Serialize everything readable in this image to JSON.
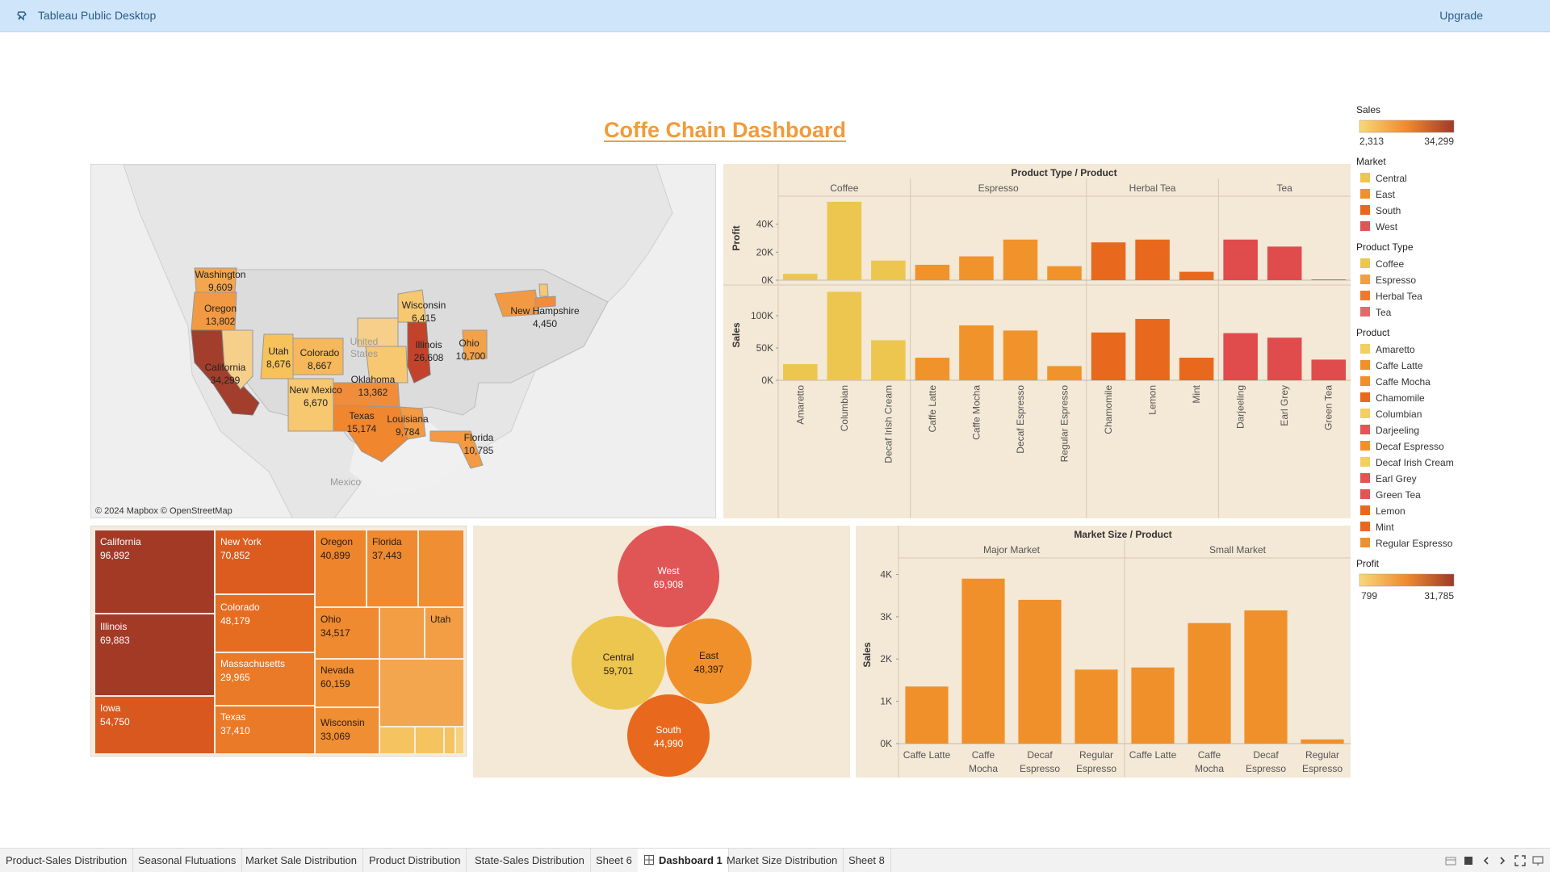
{
  "app": {
    "title": "Tableau Public Desktop",
    "upgrade_label": "Upgrade"
  },
  "dashboard": {
    "title": "Coffe Chain Dashboard"
  },
  "map": {
    "attribution": "© 2024 Mapbox © OpenStreetMap",
    "country_label_1": "United",
    "country_label_2": "States",
    "mexico_label": "Mexico",
    "states": [
      {
        "name": "Washington",
        "value": "9,609"
      },
      {
        "name": "Oregon",
        "value": "13,802"
      },
      {
        "name": "California",
        "value": "34,299"
      },
      {
        "name": "Utah",
        "value": "8,676"
      },
      {
        "name": "Colorado",
        "value": "8,667"
      },
      {
        "name": "New Mexico",
        "value": "6,670"
      },
      {
        "name": "Oklahoma",
        "value": "13,362"
      },
      {
        "name": "Texas",
        "value": "15,174"
      },
      {
        "name": "Louisiana",
        "value": "9,784"
      },
      {
        "name": "Florida",
        "value": "10,785"
      },
      {
        "name": "Wisconsin",
        "value": "6,415"
      },
      {
        "name": "Illinois",
        "value": "26,608"
      },
      {
        "name": "Ohio",
        "value": "10,700"
      },
      {
        "name": "New Hampshire",
        "value": "4,450"
      }
    ]
  },
  "product_chart": {
    "chart_data": {
      "type": "bar",
      "title": "Product Type / Product",
      "groups": [
        "Coffee",
        "Espresso",
        "Herbal Tea",
        "Tea"
      ],
      "categories": [
        "Amaretto",
        "Columbian",
        "Decaf Irish Cream",
        "Caffe Latte",
        "Caffe Mocha",
        "Decaf Espresso",
        "Regular Espresso",
        "Chamomile",
        "Lemon",
        "Mint",
        "Darjeeling",
        "Earl Grey",
        "Green Tea"
      ],
      "category_group": [
        0,
        0,
        0,
        1,
        1,
        1,
        1,
        2,
        2,
        2,
        3,
        3,
        3
      ],
      "series": [
        {
          "name": "Profit",
          "values": [
            4500,
            56000,
            14000,
            11000,
            17000,
            29000,
            10000,
            27000,
            29000,
            6000,
            29000,
            24000,
            500
          ],
          "ylim": [
            0,
            60000
          ],
          "ticks": [
            "0K",
            "20K",
            "40K"
          ],
          "tick_values": [
            0,
            20000,
            40000
          ]
        },
        {
          "name": "Sales",
          "values": [
            25000,
            137000,
            62000,
            35000,
            85000,
            77000,
            22000,
            74000,
            95000,
            35000,
            73000,
            66000,
            32000
          ],
          "ylim": [
            0,
            140000
          ],
          "ticks": [
            "0K",
            "50K",
            "100K"
          ],
          "tick_values": [
            0,
            50000,
            100000
          ]
        }
      ],
      "colors": [
        "#ecc64f",
        "#ecc64f",
        "#ecc64f",
        "#f0932b",
        "#f0932b",
        "#f0932b",
        "#f0932b",
        "#e8691d",
        "#e8691d",
        "#e8691d",
        "#e04c4c",
        "#e04c4c",
        "#e04c4c"
      ]
    }
  },
  "treemap": {
    "cells": [
      {
        "name": "California",
        "value": "96,892"
      },
      {
        "name": "Illinois",
        "value": "69,883"
      },
      {
        "name": "Iowa",
        "value": "54,750"
      },
      {
        "name": "New York",
        "value": "70,852"
      },
      {
        "name": "Colorado",
        "value": "48,179"
      },
      {
        "name": "Massachusetts",
        "value": "29,965"
      },
      {
        "name": "Texas",
        "value": "37,410"
      },
      {
        "name": "Oregon",
        "value": "40,899"
      },
      {
        "name": "Florida",
        "value": "37,443"
      },
      {
        "name": "Ohio",
        "value": "34,517"
      },
      {
        "name": "Utah",
        "value": ""
      },
      {
        "name": "Nevada",
        "value": "60,159"
      },
      {
        "name": "Wisconsin",
        "value": "33,069"
      }
    ]
  },
  "bubbles": {
    "chart_data": {
      "type": "bubble",
      "items": [
        {
          "name": "West",
          "value": "69,908",
          "number": 69908,
          "color": "#e05555"
        },
        {
          "name": "Central",
          "value": "59,701",
          "number": 59701,
          "color": "#ecc64f"
        },
        {
          "name": "East",
          "value": "48,397",
          "number": 48397,
          "color": "#f0902a"
        },
        {
          "name": "South",
          "value": "44,990",
          "number": 44990,
          "color": "#e8691d"
        }
      ]
    }
  },
  "market_chart": {
    "chart_data": {
      "type": "bar",
      "title": "Market Size / Product",
      "groups": [
        "Major Market",
        "Small Market"
      ],
      "category_lines": [
        [
          "Caffe Latte"
        ],
        [
          "Caffe",
          "Mocha"
        ],
        [
          "Decaf",
          "Espresso"
        ],
        [
          "Regular",
          "Espresso"
        ],
        [
          "Caffe Latte"
        ],
        [
          "Caffe",
          "Mocha"
        ],
        [
          "Decaf",
          "Espresso"
        ],
        [
          "Regular",
          "Espresso"
        ]
      ],
      "category_group": [
        0,
        0,
        0,
        0,
        1,
        1,
        1,
        1
      ],
      "ylabel": "Sales",
      "values": [
        1350,
        3900,
        3400,
        1750,
        1800,
        2850,
        3150,
        100
      ],
      "ylim": [
        0,
        4200
      ],
      "ticks": [
        "0K",
        "1K",
        "2K",
        "3K",
        "4K"
      ],
      "tick_values": [
        0,
        1000,
        2000,
        3000,
        4000
      ],
      "color": "#f0902a"
    }
  },
  "legend": {
    "sales": {
      "title": "Sales",
      "min": "2,313",
      "max": "34,299"
    },
    "market": {
      "title": "Market",
      "items": [
        {
          "label": "Central",
          "color": "#ecc64f"
        },
        {
          "label": "East",
          "color": "#f0902a"
        },
        {
          "label": "South",
          "color": "#e8691d"
        },
        {
          "label": "West",
          "color": "#e05555"
        }
      ]
    },
    "product_type": {
      "title": "Product Type",
      "items": [
        {
          "label": "Coffee",
          "color": "#ecc64f"
        },
        {
          "label": "Espresso",
          "color": "#f0a040"
        },
        {
          "label": "Herbal Tea",
          "color": "#ee7a30"
        },
        {
          "label": "Tea",
          "color": "#e46a6a"
        }
      ]
    },
    "product": {
      "title": "Product",
      "items": [
        {
          "label": "Amaretto",
          "color": "#f2cf60"
        },
        {
          "label": "Caffe Latte",
          "color": "#f0902a"
        },
        {
          "label": "Caffe Mocha",
          "color": "#f0902a"
        },
        {
          "label": "Chamomile",
          "color": "#e8691d"
        },
        {
          "label": "Columbian",
          "color": "#f2cf60"
        },
        {
          "label": "Darjeeling",
          "color": "#e05555"
        },
        {
          "label": "Decaf Espresso",
          "color": "#f0902a"
        },
        {
          "label": "Decaf Irish Cream",
          "color": "#f2cf60"
        },
        {
          "label": "Earl Grey",
          "color": "#e05555"
        },
        {
          "label": "Green Tea",
          "color": "#e05555"
        },
        {
          "label": "Lemon",
          "color": "#e8691d"
        },
        {
          "label": "Mint",
          "color": "#e8691d"
        },
        {
          "label": "Regular Espresso",
          "color": "#f0902a"
        }
      ]
    },
    "profit": {
      "title": "Profit",
      "min": "799",
      "max": "31,785"
    }
  },
  "tabs": [
    {
      "label": "Product-Sales Distribution"
    },
    {
      "label": "Seasonal Flutuations"
    },
    {
      "label": "Market Sale Distribution"
    },
    {
      "label": "Product Distribution"
    },
    {
      "label": "State-Sales Distribution"
    },
    {
      "label": "Sheet 6"
    },
    {
      "label": "Dashboard 1",
      "active": true
    },
    {
      "label": "Market Size Distribution"
    },
    {
      "label": "Sheet 8"
    }
  ]
}
